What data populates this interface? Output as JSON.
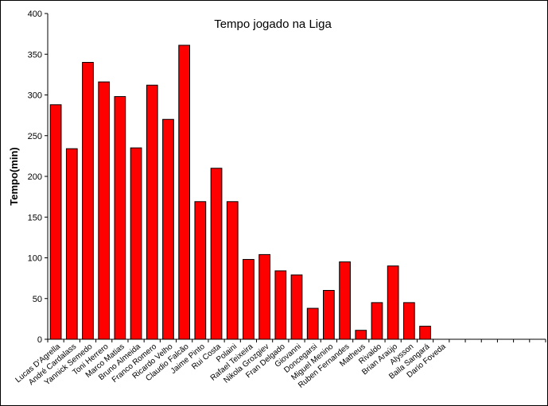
{
  "chart_data": {
    "type": "bar",
    "title": "Tempo jogado na Liga",
    "xlabel": "",
    "ylabel": "Tempo(min)",
    "ylim": [
      0,
      400
    ],
    "yticks": [
      0,
      50,
      100,
      150,
      200,
      250,
      300,
      350,
      400
    ],
    "grid": false,
    "legend": "none",
    "bar_color": "#ff0000",
    "categories": [
      "Lucas D'Agrella",
      "André Cardalass",
      "Yannick Semedo",
      "Toni Herrero",
      "Marco Matias",
      "Bruno Almeida",
      "Franco Romero",
      "Ricardo Velho",
      "Claudio Falcão",
      "Jaime Pinto",
      "Rui Costa",
      "Polaini",
      "Rafael Teixeira",
      "Nikola Grozgiev",
      "Fran Delgado",
      "Giovanni",
      "Doncegarsi",
      "Miguel Menino",
      "Ruben Fernandes",
      "Matheus",
      "Rivaldo",
      "Brian Araújo",
      "Alysson",
      "Baila Sangará",
      "Dario Foveda",
      "",
      "",
      "",
      "",
      "",
      ""
    ],
    "values": [
      288,
      234,
      340,
      316,
      298,
      235,
      312,
      270,
      361,
      169,
      210,
      169,
      98,
      104,
      84,
      79,
      38,
      60,
      95,
      11,
      45,
      90,
      45,
      16,
      0,
      null,
      null,
      null,
      null,
      null,
      null
    ]
  }
}
